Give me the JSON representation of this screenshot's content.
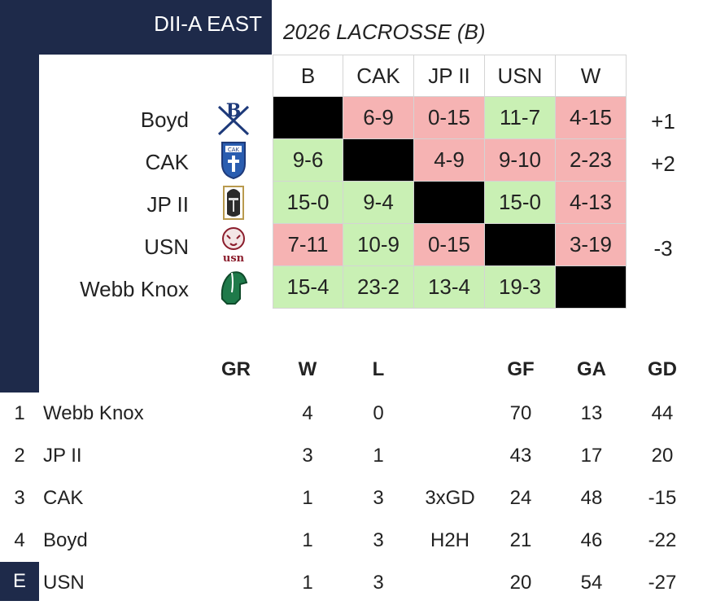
{
  "header": {
    "division": "DII-A EAST",
    "season": "2026 LACROSSE (B)"
  },
  "columns": [
    "B",
    "CAK",
    "JP II",
    "USN",
    "W"
  ],
  "matrix": [
    {
      "team": "Boyd",
      "logo": "boyd-crossed-swords-logo",
      "cells": [
        "",
        "6-9",
        "0-15",
        "11-7",
        "4-15"
      ],
      "results": [
        "self",
        "loss",
        "loss",
        "win",
        "loss"
      ],
      "diff": "+1"
    },
    {
      "team": "CAK",
      "logo": "cak-shield-logo",
      "cells": [
        "9-6",
        "",
        "4-9",
        "9-10",
        "2-23"
      ],
      "results": [
        "win",
        "self",
        "loss",
        "loss",
        "loss"
      ],
      "diff": "+2"
    },
    {
      "team": "JP II",
      "logo": "jp2-knight-helmet-logo",
      "cells": [
        "15-0",
        "9-4",
        "",
        "15-0",
        "4-13"
      ],
      "results": [
        "win",
        "win",
        "self",
        "win",
        "loss"
      ],
      "diff": ""
    },
    {
      "team": "USN",
      "logo": "usn-tiger-logo",
      "cells": [
        "7-11",
        "10-9",
        "0-15",
        "",
        "3-19"
      ],
      "results": [
        "loss",
        "win",
        "loss",
        "self",
        "loss"
      ],
      "diff": "-3"
    },
    {
      "team": "Webb Knox",
      "logo": "webb-spartan-helmet-logo",
      "cells": [
        "15-4",
        "23-2",
        "13-4",
        "19-3",
        ""
      ],
      "results": [
        "win",
        "win",
        "win",
        "win",
        "self"
      ],
      "diff": ""
    }
  ],
  "standings": {
    "headers": {
      "gr": "GR",
      "w": "W",
      "l": "L",
      "gf": "GF",
      "ga": "GA",
      "gd": "GD"
    },
    "rows": [
      {
        "rank": "1",
        "team": "Webb Knox",
        "w": "4",
        "l": "0",
        "tiebreak": "",
        "gf": "70",
        "ga": "13",
        "gd": "44"
      },
      {
        "rank": "2",
        "team": "JP II",
        "w": "3",
        "l": "1",
        "tiebreak": "",
        "gf": "43",
        "ga": "17",
        "gd": "20"
      },
      {
        "rank": "3",
        "team": "CAK",
        "w": "1",
        "l": "3",
        "tiebreak": "3xGD",
        "gf": "24",
        "ga": "48",
        "gd": "-15"
      },
      {
        "rank": "4",
        "team": "Boyd",
        "w": "1",
        "l": "3",
        "tiebreak": "H2H",
        "gf": "21",
        "ga": "46",
        "gd": "-22"
      },
      {
        "rank": "E",
        "team": "USN",
        "w": "1",
        "l": "3",
        "tiebreak": "",
        "gf": "20",
        "ga": "54",
        "gd": "-27"
      }
    ]
  },
  "colors": {
    "navy": "#1e2a4a",
    "win": "#c9f0b4",
    "loss": "#f6b3b3",
    "self": "#000000"
  }
}
